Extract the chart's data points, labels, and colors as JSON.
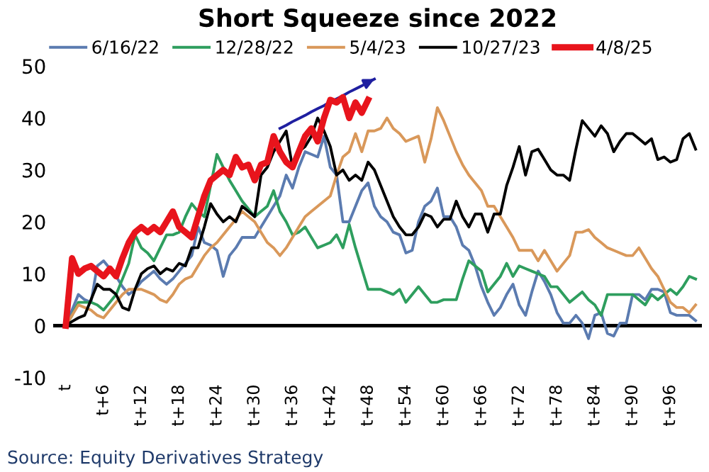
{
  "chart_data": {
    "type": "line",
    "title": "Short Squeeze since 2022",
    "annotations": [
      "Source: Equity Derivatives Strategy"
    ],
    "categories": [
      "t",
      null,
      null,
      null,
      null,
      null,
      "t+6",
      null,
      null,
      null,
      null,
      null,
      "t+12",
      null,
      null,
      null,
      null,
      null,
      "t+18",
      null,
      null,
      null,
      null,
      null,
      "t+24",
      null,
      null,
      null,
      null,
      null,
      "t+30",
      null,
      null,
      null,
      null,
      null,
      "t+36",
      null,
      null,
      null,
      null,
      null,
      "t+42",
      null,
      null,
      null,
      null,
      null,
      "t+48",
      null,
      null,
      null,
      null,
      null,
      "t+54",
      null,
      null,
      null,
      null,
      null,
      "t+60",
      null,
      null,
      null,
      null,
      null,
      "t+66",
      null,
      null,
      null,
      null,
      null,
      "t+72",
      null,
      null,
      null,
      null,
      null,
      "t+78",
      null,
      null,
      null,
      null,
      null,
      "t+84",
      null,
      null,
      null,
      null,
      null,
      "t+90",
      null,
      null,
      null,
      null,
      null,
      "t+96",
      null,
      null,
      null,
      null
    ],
    "ylim": [
      -10,
      50
    ],
    "yticks": [
      -10,
      0,
      10,
      20,
      30,
      40,
      50
    ],
    "grid": false,
    "legend": "top",
    "line_style": "solid",
    "marker": "none",
    "ref_lines": [
      {
        "axis": "y",
        "value": 0,
        "color": "#000000"
      }
    ],
    "series": [
      {
        "name": "6/16/22",
        "color": "#5b7bb0",
        "values": [
          0,
          3,
          6,
          5,
          4.5,
          11.5,
          12.5,
          11,
          9.5,
          7.5,
          6,
          7,
          8.5,
          9.5,
          10.5,
          9,
          8,
          9,
          10.5,
          12,
          13.5,
          19,
          16,
          15.5,
          14.5,
          9.5,
          13.5,
          15,
          17,
          17,
          17,
          19,
          21,
          23,
          25,
          29,
          26.5,
          30.5,
          33.5,
          33,
          32.5,
          36.5,
          30.5,
          29,
          20,
          20,
          23,
          26,
          27.5,
          23,
          21,
          20,
          18,
          17.5,
          14,
          14.5,
          20,
          23,
          24,
          26.5,
          21,
          21,
          19,
          15.5,
          14.5,
          11.5,
          7.5,
          4.5,
          2,
          3.5,
          6,
          8,
          4,
          2,
          6.5,
          10.5,
          8.5,
          6,
          2.5,
          0.5,
          0.5,
          2,
          0.5,
          -2.5,
          2,
          2.5,
          -1.5,
          -2,
          0.5,
          0.5,
          6,
          6,
          5,
          7,
          7,
          6.5,
          2.5,
          2,
          2,
          2,
          1
        ]
      },
      {
        "name": "12/28/22",
        "color": "#2e9e5e",
        "values": [
          0,
          2,
          4.5,
          4.5,
          4.5,
          4,
          3,
          4.5,
          6,
          9,
          12,
          17.5,
          15,
          14,
          12.5,
          15,
          17.5,
          17.5,
          18,
          21,
          23.5,
          22,
          21,
          27,
          33,
          30.5,
          28,
          26,
          24,
          22.5,
          21,
          22,
          23,
          26,
          22,
          20,
          17.5,
          18,
          19,
          17,
          15,
          15.5,
          16,
          17.5,
          15,
          19.5,
          15,
          11,
          7,
          7,
          7,
          6.5,
          6,
          7,
          4.5,
          6,
          7.5,
          6,
          4.5,
          4.5,
          5,
          5,
          5,
          9,
          12.5,
          11.5,
          10.5,
          6.5,
          8,
          9.5,
          12,
          9.5,
          11.5,
          11,
          10.5,
          10,
          9.5,
          7.5,
          7.5,
          6,
          4.5,
          5.5,
          6.5,
          5,
          4,
          2,
          6,
          6,
          6,
          6,
          6,
          5,
          4,
          6,
          5,
          6,
          7,
          6,
          7.5,
          9.5,
          9
        ]
      },
      {
        "name": "5/4/23",
        "color": "#d9985a",
        "values": [
          0,
          2,
          4,
          3.5,
          3,
          2,
          1.5,
          3,
          4.5,
          6,
          7,
          7,
          7,
          6.5,
          6,
          5,
          4.5,
          6,
          8,
          9,
          9.5,
          11.5,
          13.5,
          15,
          16,
          17.5,
          19,
          20.5,
          22,
          21,
          20,
          18,
          16,
          15,
          13.5,
          15,
          17,
          19,
          21,
          22,
          23,
          24,
          25,
          29,
          32.5,
          33.5,
          37,
          33.5,
          37.5,
          37.5,
          38,
          40,
          38,
          37,
          35.5,
          36,
          36.5,
          31.5,
          36,
          42,
          39.5,
          36.5,
          33.5,
          31,
          29,
          27.5,
          26,
          23,
          23,
          21,
          19,
          17,
          14.5,
          14.5,
          14.5,
          12.5,
          14.5,
          12.5,
          10.5,
          12,
          13.5,
          18,
          18,
          18.5,
          17,
          16,
          15,
          14.5,
          14,
          13.5,
          13.5,
          15,
          13,
          11,
          9.5,
          7,
          4.5,
          3.5,
          3.5,
          2.5,
          4
        ]
      },
      {
        "name": "10/27/23",
        "color": "#000000",
        "values": [
          0,
          0.8,
          1.5,
          2,
          5,
          8,
          7,
          7,
          6,
          3.5,
          3,
          7,
          10,
          11,
          11.5,
          10,
          11,
          10.5,
          12,
          11.5,
          15,
          15,
          19,
          23.5,
          21.5,
          20,
          21,
          20,
          23,
          22,
          21,
          29,
          30.5,
          33.5,
          35.5,
          37.5,
          30.5,
          33.5,
          34.5,
          36.5,
          40,
          37.5,
          34.5,
          29,
          30,
          28,
          29,
          28,
          31.5,
          30,
          27,
          24,
          21,
          19,
          17.5,
          17.5,
          19,
          21.5,
          21,
          19,
          20.5,
          20.5,
          24,
          21,
          19,
          21.5,
          21.5,
          18,
          21.5,
          21.5,
          27,
          30.5,
          34.5,
          29,
          33.5,
          34,
          32,
          30,
          29,
          29,
          28,
          34,
          39.5,
          38,
          36.5,
          38.5,
          37,
          33.5,
          35.5,
          37,
          37,
          36,
          35,
          36,
          32,
          32.5,
          31.5,
          32,
          36,
          37,
          34
        ]
      },
      {
        "name": "4/8/25",
        "color": "#e8141c",
        "values": [
          0,
          13,
          10,
          11,
          11.5,
          10.5,
          9.5,
          11,
          9.5,
          13,
          16,
          18,
          19,
          18,
          19,
          18,
          20,
          22,
          19,
          18,
          17,
          21,
          25,
          28,
          29,
          30,
          29,
          32.5,
          30.5,
          31,
          28,
          31,
          31.5,
          36.5,
          33.5,
          31.5,
          30.5,
          33.5,
          36.5,
          38,
          35.5,
          40,
          43.5,
          43,
          44,
          40,
          43,
          41,
          43.5,
          null,
          null,
          null,
          null,
          null,
          null,
          null,
          null,
          null,
          null,
          null,
          null,
          null,
          null,
          null,
          null,
          null,
          null,
          null,
          null,
          null,
          null,
          null,
          null,
          null,
          null,
          null,
          null,
          null,
          null,
          null,
          null,
          null,
          null,
          null,
          null,
          null,
          null,
          null,
          null,
          null,
          null,
          null,
          null,
          null,
          null,
          null,
          null,
          null,
          null,
          null,
          null
        ]
      },
      {
        "color": "#1f1fa0",
        "values": [
          null,
          null,
          null,
          null,
          null,
          null,
          null,
          null,
          null,
          null,
          null,
          null,
          null,
          null,
          null,
          null,
          null,
          null,
          null,
          null,
          null,
          null,
          null,
          null,
          null,
          null,
          null,
          null,
          null,
          null,
          null,
          null,
          null,
          null,
          38,
          38.6,
          39.3,
          39.9,
          40.5,
          41.2,
          41.8,
          42.4,
          43.1,
          43.7,
          44.3,
          45,
          45.6,
          46.2,
          46.9,
          47.5,
          null,
          null,
          null,
          null,
          null,
          null,
          null,
          null,
          null,
          null,
          null,
          null,
          null,
          null,
          null,
          null,
          null,
          null,
          null,
          null,
          null,
          null,
          null,
          null,
          null,
          null,
          null,
          null,
          null,
          null,
          null,
          null,
          null,
          null,
          null,
          null,
          null,
          null,
          null,
          null,
          null,
          null,
          null,
          null,
          null,
          null,
          null,
          null,
          null,
          null,
          null
        ]
      }
    ]
  }
}
